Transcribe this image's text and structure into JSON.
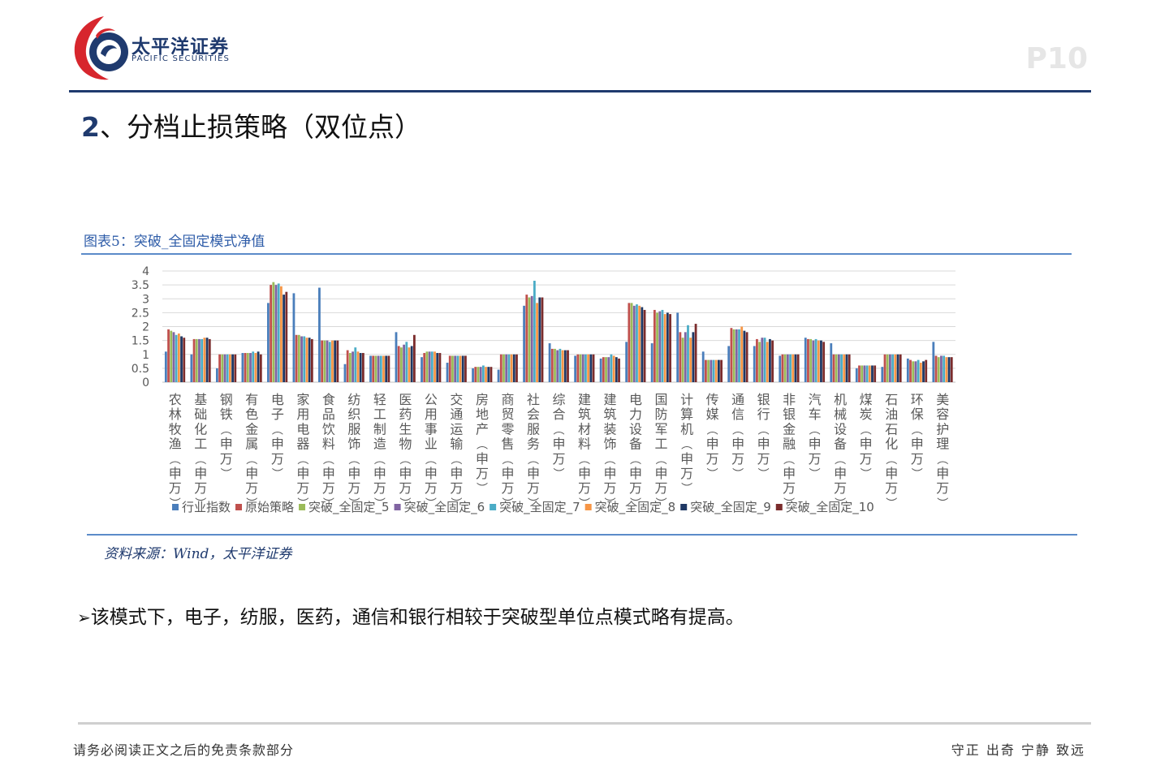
{
  "header": {
    "brand_cn": "太平洋证券",
    "brand_en": "PACIFIC SECURITIES",
    "page_number": "P10"
  },
  "section": {
    "number": "2",
    "title": "、分档止损策略（双位点）"
  },
  "figure": {
    "caption": "图表5：突破_全固定模式净值",
    "source": "资料来源：Wind，太平洋证券"
  },
  "bullet": {
    "marker": "➢",
    "text": "该模式下，电子，纺服，医药，通信和银行相较于突破型单位点模式略有提高。"
  },
  "footer": {
    "left": "请务必阅读正文之后的免责条款部分",
    "right": "守正 出奇 宁静 致远"
  },
  "chart_data": {
    "type": "bar",
    "ylim": [
      0,
      4
    ],
    "yticks": [
      "0",
      "0.5",
      "1",
      "1.5",
      "2",
      "2.5",
      "3",
      "3.5",
      "4"
    ],
    "grid": true,
    "legend_position": "bottom",
    "categories": [
      "农林牧渔(申万)",
      "基础化工(申万)",
      "钢铁(申万)",
      "有色金属(申万)",
      "电子(申万)",
      "家用电器(申万)",
      "食品饮料(申万)",
      "纺织服饰(申万)",
      "轻工制造(申万)",
      "医药生物(申万)",
      "公用事业(申万)",
      "交通运输(申万)",
      "房地产(申万)",
      "商贸零售(申万)",
      "社会服务(申万)",
      "综合(申万)",
      "建筑材料(申万)",
      "建筑装饰(申万)",
      "电力设备(申万)",
      "国防军工(申万)",
      "计算机(申万)",
      "传媒(申万)",
      "通信(申万)",
      "银行(申万)",
      "非银金融(申万)",
      "汽车(申万)",
      "机械设备(申万)",
      "煤炭(申万)",
      "石油石化(申万)",
      "环保(申万)",
      "美容护理(申万)"
    ],
    "series": [
      {
        "name": "行业指数",
        "color": "#4a7ebb",
        "values": [
          1.1,
          1.0,
          0.5,
          1.05,
          2.85,
          3.2,
          3.4,
          0.65,
          0.95,
          1.8,
          0.9,
          0.7,
          0.5,
          0.45,
          2.75,
          1.4,
          0.95,
          0.85,
          1.45,
          1.4,
          2.5,
          1.1,
          1.3,
          1.3,
          0.95,
          1.6,
          1.4,
          0.5,
          0.55,
          0.85,
          1.45
        ]
      },
      {
        "name": "原始策略",
        "color": "#c0504d",
        "values": [
          1.9,
          1.55,
          1.0,
          1.05,
          3.5,
          1.7,
          1.5,
          1.15,
          0.95,
          1.3,
          1.05,
          0.95,
          0.55,
          1.0,
          3.15,
          1.2,
          1.0,
          0.9,
          2.85,
          2.6,
          1.8,
          0.8,
          1.95,
          1.55,
          1.0,
          1.55,
          1.0,
          0.6,
          1.0,
          0.8,
          0.95
        ]
      },
      {
        "name": "突破_全固定_5",
        "color": "#9bbb59",
        "values": [
          1.85,
          1.55,
          1.0,
          1.05,
          3.6,
          1.7,
          1.5,
          1.05,
          0.95,
          1.25,
          1.1,
          0.95,
          0.55,
          1.0,
          3.05,
          1.2,
          1.0,
          0.9,
          2.85,
          2.5,
          1.6,
          0.8,
          1.9,
          1.45,
          1.0,
          1.55,
          1.0,
          0.6,
          1.0,
          0.75,
          0.9
        ]
      },
      {
        "name": "突破_全固定_6",
        "color": "#8064a2",
        "values": [
          1.8,
          1.55,
          1.0,
          1.05,
          3.5,
          1.65,
          1.5,
          1.1,
          0.95,
          1.35,
          1.1,
          0.95,
          0.55,
          1.0,
          3.1,
          1.15,
          1.0,
          0.9,
          2.75,
          2.55,
          1.8,
          0.8,
          1.9,
          1.6,
          1.0,
          1.5,
          1.0,
          0.6,
          1.0,
          0.75,
          0.95
        ]
      },
      {
        "name": "突破_全固定_7",
        "color": "#4bacc6",
        "values": [
          1.7,
          1.55,
          1.0,
          1.1,
          3.55,
          1.65,
          1.45,
          1.25,
          0.95,
          1.45,
          1.1,
          0.95,
          0.6,
          1.0,
          3.65,
          1.2,
          1.0,
          1.0,
          2.8,
          2.6,
          2.05,
          0.8,
          1.9,
          1.6,
          1.0,
          1.55,
          1.0,
          0.6,
          1.0,
          0.8,
          0.95
        ]
      },
      {
        "name": "突破_全固定_8",
        "color": "#f79646",
        "values": [
          1.75,
          1.6,
          1.0,
          1.05,
          3.45,
          1.6,
          1.5,
          1.1,
          0.95,
          1.25,
          1.1,
          0.95,
          0.55,
          1.0,
          2.85,
          1.15,
          1.0,
          0.95,
          2.75,
          2.45,
          1.6,
          0.8,
          2.0,
          1.45,
          1.0,
          1.5,
          1.0,
          0.6,
          1.0,
          0.7,
          0.9
        ]
      },
      {
        "name": "突破_全固定_9",
        "color": "#1f3864",
        "values": [
          1.65,
          1.6,
          1.0,
          1.1,
          3.15,
          1.6,
          1.5,
          1.05,
          0.95,
          1.3,
          1.05,
          0.95,
          0.55,
          1.0,
          3.05,
          1.15,
          1.0,
          0.9,
          2.7,
          2.5,
          1.8,
          0.8,
          1.85,
          1.55,
          1.0,
          1.5,
          1.0,
          0.6,
          1.0,
          0.75,
          0.9
        ]
      },
      {
        "name": "突破_全固定_10",
        "color": "#7b2c2c",
        "values": [
          1.6,
          1.55,
          1.0,
          1.0,
          3.25,
          1.55,
          1.5,
          1.05,
          0.95,
          1.7,
          1.05,
          0.95,
          0.55,
          1.0,
          3.05,
          1.15,
          1.0,
          0.85,
          2.6,
          2.45,
          2.1,
          0.8,
          1.8,
          1.5,
          1.0,
          1.45,
          1.0,
          0.6,
          1.0,
          0.8,
          0.9
        ]
      }
    ]
  }
}
